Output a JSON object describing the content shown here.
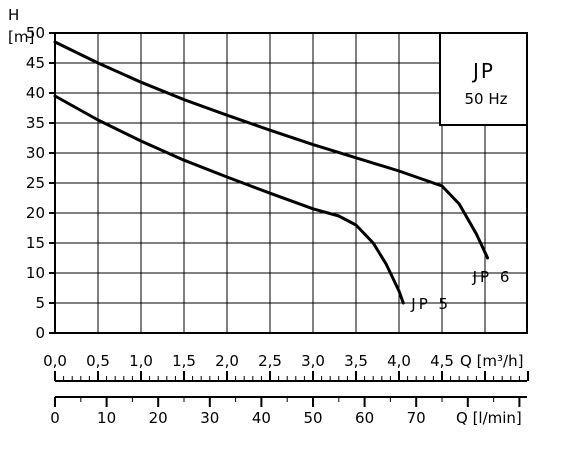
{
  "chart_data": {
    "type": "line",
    "legend_box": {
      "title": "JP",
      "subtitle": "50 Hz"
    },
    "y_axis": {
      "title": "H",
      "unit": "[m]",
      "range": [
        0,
        50
      ],
      "ticks": [
        "0",
        "5",
        "10",
        "15",
        "20",
        "25",
        "30",
        "35",
        "40",
        "45",
        "50"
      ]
    },
    "x_axis_primary": {
      "unit_label": "Q [m³/h]",
      "range": [
        0,
        5.5
      ],
      "ticks": [
        "0,0",
        "0,5",
        "1,0",
        "1,5",
        "2,0",
        "2,5",
        "3,0",
        "3,5",
        "4,0",
        "4,5"
      ]
    },
    "x_axis_secondary": {
      "unit_label": "Q [l/min]",
      "ticks": [
        "0",
        "10",
        "20",
        "30",
        "40",
        "50",
        "60",
        "70"
      ]
    },
    "grid": true,
    "series": [
      {
        "name": "JP 6",
        "x": [
          0.0,
          0.5,
          1.0,
          1.5,
          2.0,
          2.5,
          3.0,
          3.5,
          4.0,
          4.3,
          4.5,
          4.7,
          4.9,
          5.03
        ],
        "y": [
          48.5,
          45.0,
          41.8,
          38.9,
          36.3,
          33.8,
          31.4,
          29.2,
          27.0,
          25.5,
          24.5,
          21.5,
          16.5,
          12.5
        ]
      },
      {
        "name": "JP 5",
        "x": [
          0.0,
          0.5,
          1.0,
          1.5,
          2.0,
          2.5,
          3.0,
          3.3,
          3.5,
          3.7,
          3.85,
          4.0,
          4.05
        ],
        "y": [
          39.5,
          35.5,
          32.0,
          28.8,
          26.0,
          23.3,
          20.7,
          19.5,
          18.0,
          15.0,
          11.5,
          7.0,
          5.0
        ]
      }
    ]
  }
}
